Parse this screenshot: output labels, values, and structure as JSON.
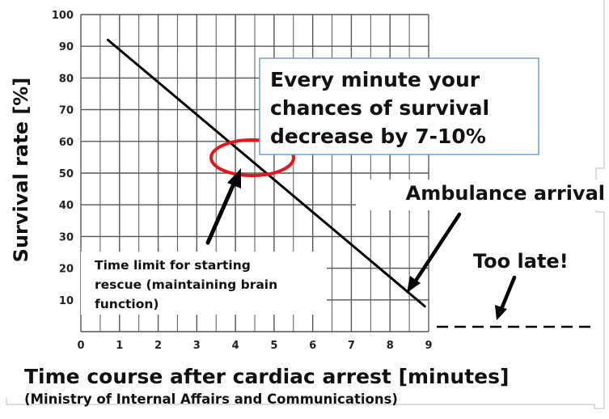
{
  "chart_data": {
    "type": "line",
    "xlabel": "Time course after cardiac arrest [minutes]",
    "ylabel": "Survival rate [%]",
    "source": "(Ministry of Internal Affairs and Communications)",
    "xlim": [
      0,
      9
    ],
    "ylim": [
      0,
      100
    ],
    "x_ticks": [
      "0",
      "1",
      "2",
      "3",
      "4",
      "5",
      "6",
      "7",
      "8",
      "9"
    ],
    "y_ticks": [
      "10",
      "20",
      "30",
      "40",
      "50",
      "60",
      "70",
      "80",
      "90",
      "100"
    ],
    "grid": true,
    "series": [
      {
        "values": [
          {
            "x": 0.7,
            "y": 92
          },
          {
            "x": 8.9,
            "y": 8
          }
        ],
        "color": "#000000"
      }
    ],
    "annotations": {
      "callout_lines": [
        "Every minute your",
        "chances of survival",
        "decrease by 7-10%"
      ],
      "ambulance": "Ambulance arrival",
      "too_late": "Too late!",
      "time_limit_lines": [
        "Time limit for starting",
        "rescue (maintaining brain",
        "function)"
      ],
      "highlight_color": "#e8141c"
    }
  }
}
